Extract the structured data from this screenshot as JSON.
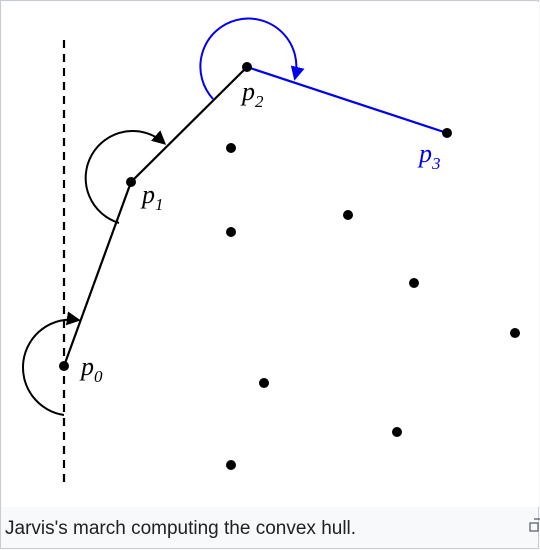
{
  "figure": {
    "caption": "Jarvis's march computing the convex hull.",
    "enlarge_icon": "magnify-clip-icon",
    "colors": {
      "black": "#000000",
      "highlight": "#0000ee",
      "caption_text": "#202122",
      "frame_border": "#c8ccd1",
      "frame_background": "#f8f9fa"
    }
  },
  "diagram": {
    "labels": {
      "p0": "p0",
      "p1": "p1",
      "p2": "p2",
      "p3": "p3"
    }
  }
}
